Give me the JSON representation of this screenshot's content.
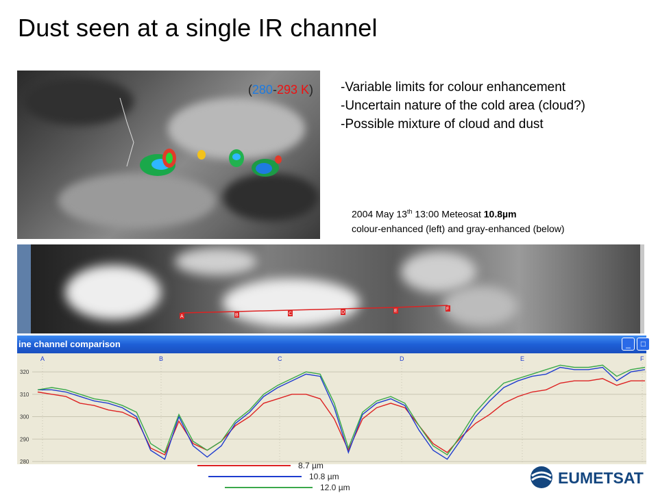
{
  "slide": {
    "title": "Dust seen at a single IR channel",
    "bullets": [
      "-Variable limits for colour enhancement",
      "-Uncertain nature of the cold area (cloud?)",
      "-Possible mixture of cloud and dust"
    ],
    "range_label": {
      "open": "(",
      "low": "280",
      "dash": "-",
      "high": "293 K",
      "close": ")"
    },
    "caption": {
      "line1_pre": "2004 May 13",
      "line1_sup": "th",
      "line1_mid": " 13:00 Meteosat ",
      "line1_bold": "10.8µm",
      "line2": "colour-enhanced (left) and gray-enhanced (below)"
    },
    "logo_text": "EUMETSAT"
  },
  "image_markers": [
    "A",
    "B",
    "C",
    "D",
    "E",
    "F"
  ],
  "window": {
    "title": "ine channel comparison",
    "minimize": "_",
    "maximize": "□"
  },
  "chart_data": {
    "type": "line",
    "markers": [
      "A",
      "B",
      "C",
      "D",
      "E",
      "F"
    ],
    "yticks": [
      280,
      290,
      300,
      310,
      320
    ],
    "ylim": [
      280,
      324
    ],
    "series": [
      {
        "name": "8.7 µm",
        "color": "#dd2222",
        "values": [
          311,
          310,
          309,
          306,
          305,
          303,
          302,
          299,
          286,
          283,
          298,
          288,
          285,
          289,
          296,
          300,
          306,
          308,
          310,
          310,
          308,
          299,
          285,
          299,
          304,
          306,
          304,
          296,
          288,
          284,
          291,
          297,
          301,
          306,
          309,
          311,
          312,
          315,
          316,
          316,
          317,
          314,
          316,
          316
        ]
      },
      {
        "name": "10.8 µm",
        "color": "#1e3ccf",
        "values": [
          312,
          312,
          311,
          309,
          307,
          306,
          304,
          300,
          285,
          281,
          300,
          287,
          282,
          287,
          297,
          302,
          309,
          313,
          316,
          319,
          318,
          304,
          284,
          301,
          306,
          308,
          305,
          294,
          285,
          281,
          290,
          300,
          307,
          313,
          316,
          318,
          319,
          322,
          321,
          321,
          322,
          316,
          320,
          321
        ]
      },
      {
        "name": "12.0 µm",
        "color": "#3aa84a",
        "values": [
          312,
          313,
          312,
          310,
          308,
          307,
          305,
          302,
          288,
          284,
          301,
          289,
          285,
          289,
          298,
          303,
          310,
          314,
          317,
          320,
          319,
          306,
          286,
          302,
          307,
          309,
          306,
          296,
          287,
          283,
          292,
          302,
          309,
          315,
          317,
          319,
          321,
          323,
          322,
          322,
          323,
          318,
          321,
          322
        ]
      }
    ]
  }
}
